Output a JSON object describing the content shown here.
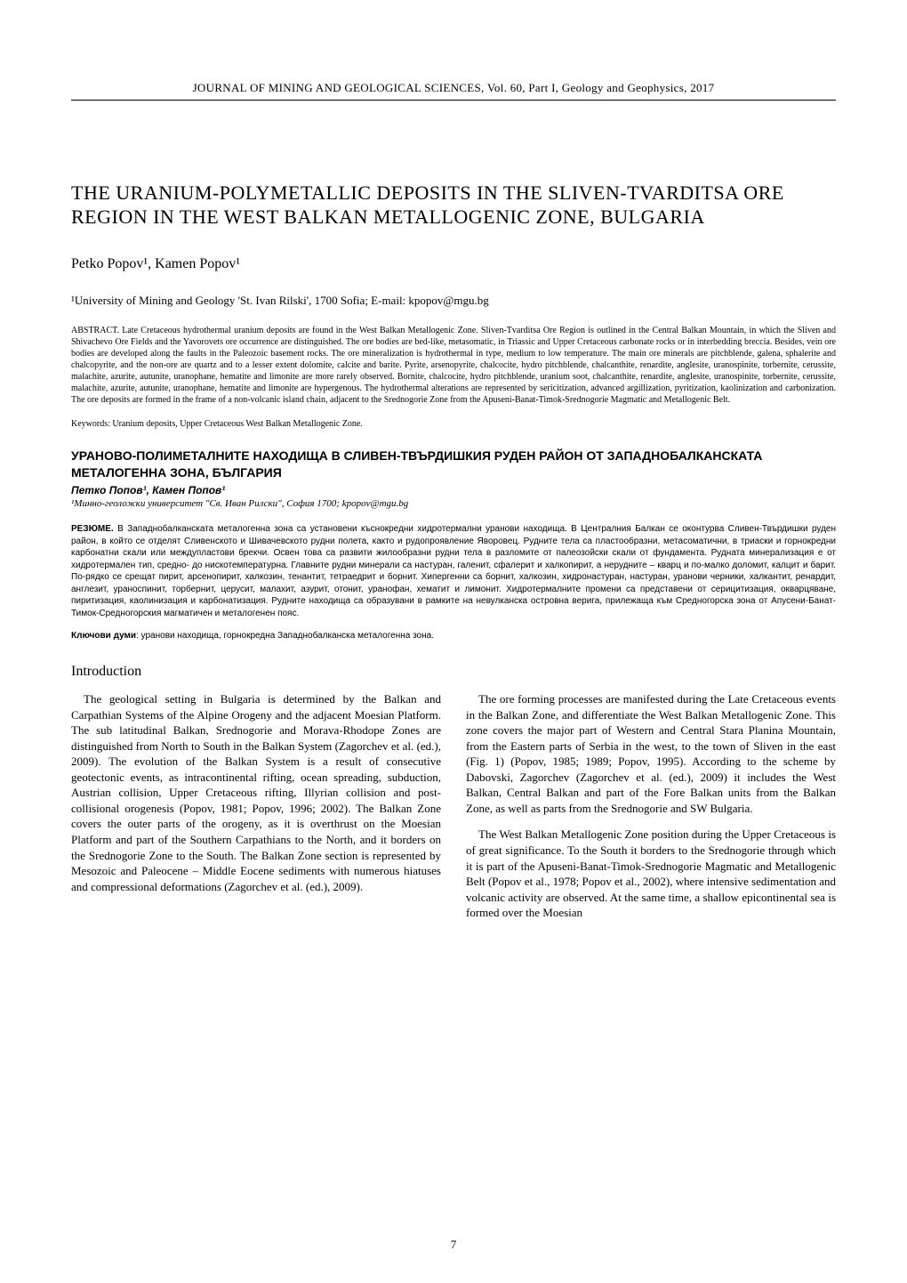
{
  "header": {
    "journal_line": "JOURNAL OF MINING AND GEOLOGICAL SCIENCES, Vol. 60, Part I, Geology and Geophysics, 2017"
  },
  "title_en": "THE URANIUM-POLYMETALLIC DEPOSITS IN THE SLIVEN-TVARDITSA ORE REGION IN THE WEST BALKAN METALLOGENIC ZONE, BULGARIA",
  "authors_en": "Petko Popov¹, Kamen Popov¹",
  "affiliation_en": "¹University of Mining and Geology 'St. Ivan Rilski', 1700 Sofia; E-mail: kpopov@mgu.bg",
  "abstract_en_label": "ABSTRACT.",
  "abstract_en": " Late Cretaceous hydrothermal uranium deposits are found in the West Balkan Metallogenic Zone. Sliven-Tvarditsa Ore Region is outlined in the Central Balkan Mountain, in which the Sliven and Shivachevo Ore Fields and the Yavorovets ore occurrence are distinguished. The ore bodies are bed-like, metasomatic, in Triassic and Upper Cretaceous carbonate rocks or in interbedding breccia. Besides, vein ore bodies are developed along the faults in the Paleozoic basement rocks. The ore mineralization is hydrothermal in type, medium to low temperature. The main ore minerals are pitchblende, galena, sphalerite and chalcopyrite, and the non-ore are quartz and to a lesser extent dolomite, calcite and barite. Pyrite, arsenopyrite, chalcocite, hydro pitchblende, chalcanthite, renardite, anglesite, uranospinite, torbernite, cerussite, malachite, azurite, autunite, uranophane, hematite and limonite are more rarely observed. Bornite, chalcocite, hydro pitchblende, uranium soot, chalcanthite, renardite, anglesite, uranospinite, torbernite, cerussite, malachite, azurite, autunite, uranophane, hematite and limonite are hypergenous. The hydrothermal alterations are represented by sericitization, advanced argillization, pyritization, kaolinization and carbonization. The ore deposits are formed in the frame of a non-volcanic island chain, adjacent to the Srednogorie Zone from the Apuseni-Banat-Timok-Srednogorie Magmatic and Metallogenic Belt.",
  "keywords_en": "Keywords: Uranium deposits, Upper Cretaceous West Balkan Metallogenic Zone.",
  "title_bg": "УРАНОВО-ПОЛИМЕТАЛНИТЕ НАХОДИЩА В СЛИВЕН-ТВЪРДИШКИЯ РУДЕН РАЙОН ОТ ЗАПАДНОБАЛКАНСКАТА МЕТАЛОГЕННА ЗОНА, БЪЛГАРИЯ",
  "authors_bg": "Петко Попов¹, Камен Попов¹",
  "affiliation_bg": "¹Минно-геоложки университет \"Св. Иван Рилски\", София 1700; kpopov@mgu.bg",
  "abstract_bg_label": "РЕЗЮМЕ.",
  "abstract_bg": " В Западнобалканската металогенна зона са установени къснокредни хидротермални уранови находища. В Централния Балкан се оконтурва Сливен-Твърдишки руден район, в който се отделят Сливенското и Шивачевското рудни полета, както и рудопроявление Яворовец. Рудните тела са пластообразни, метасоматични, в триаски и горнокредни карбонатни скали или междупластови брекчи. Освен това са развити жилообразни рудни тела в разломите от палеозойски скали от фундамента. Рудната минерализация е от хидротермален тип, средно- до нискотемпературна. Главните рудни минерали са настуран, галенит, сфалерит и халкопирит, а нерудните – кварц и по-малко доломит, калцит и барит. По-рядко се срещат пирит, арсенопирит, халкозин, тенантит, тетраедрит и борнит. Хипергенни са борнит, халкозин, хидронастуран, настуран, уранови черники, халкантит, ренардит, англезит, ураноспинит, торбернит, церусит, малахит, азурит, отонит, уранофан, хематит и лимонит. Хидротермалните промени са представени от серицитизация, окварцяване, пиритизация, каолинизация и карбонатизация. Рудните находища са образувани в рамките на невулканска островна верига, прилежаща към Средногорска зона от Апусени-Банат-Тимок-Средногорския магматичен и металогенен пояс.",
  "keywords_bg_label": "Ключови думи",
  "keywords_bg": ": уранови находища, горнокредна Западнобалканска металогенна зона.",
  "section_intro": "Introduction",
  "body": {
    "p1": "The geological setting in Bulgaria is determined by the Balkan and Carpathian Systems of the Alpine Orogeny and the adjacent Moesian Platform. The sub latitudinal Balkan, Srednogorie and Morava-Rhodope Zones are distinguished from North to South in the Balkan System (Zagorchev et al. (ed.), 2009). The evolution of the Balkan System is a result of consecutive geotectonic events, as intracontinental rifting, ocean spreading, subduction, Austrian collision, Upper Cretaceous rifting, Illyrian collision and post-collisional orogenesis (Popov, 1981; Popov, 1996; 2002). The Balkan Zone covers the outer parts of the orogeny, as it is overthrust on the Moesian Platform and part of the Southern Carpathians to the North, and it borders on the Srednogorie Zone to the South. The Balkan Zone section is represented by Mesozoic and Paleocene – Middle Eocene sediments with numerous hiatuses and compressional deformations (Zagorchev et al. (ed.), 2009).",
    "p2": "The ore forming processes are manifested during the Late Cretaceous events in the Balkan Zone, and differentiate the West Balkan Metallogenic Zone. This zone covers the major part of Western and Central Stara Planina Mountain, from the Eastern parts of Serbia in the west, to the town of Sliven in the east (Fig. 1) (Popov, 1985; 1989; Popov, 1995). According to the scheme by Dabovski, Zagorchev (Zagorchev et al. (ed.), 2009) it includes the West Balkan, Central Balkan and part of the Fore Balkan units from the Balkan Zone, as well as parts from the Srednogorie and SW Bulgaria.",
    "p3": "The West Balkan Metallogenic Zone position during the Upper Cretaceous is of great significance. To the South it borders to the Srednogorie through which it is part of the Apuseni-Banat-Timok-Srednogorie Magmatic and Metallogenic Belt (Popov et al., 1978; Popov et al., 2002), where intensive sedimentation and volcanic activity are observed. At the same time, a shallow epicontinental sea is formed over the Moesian"
  },
  "page_number": "7"
}
